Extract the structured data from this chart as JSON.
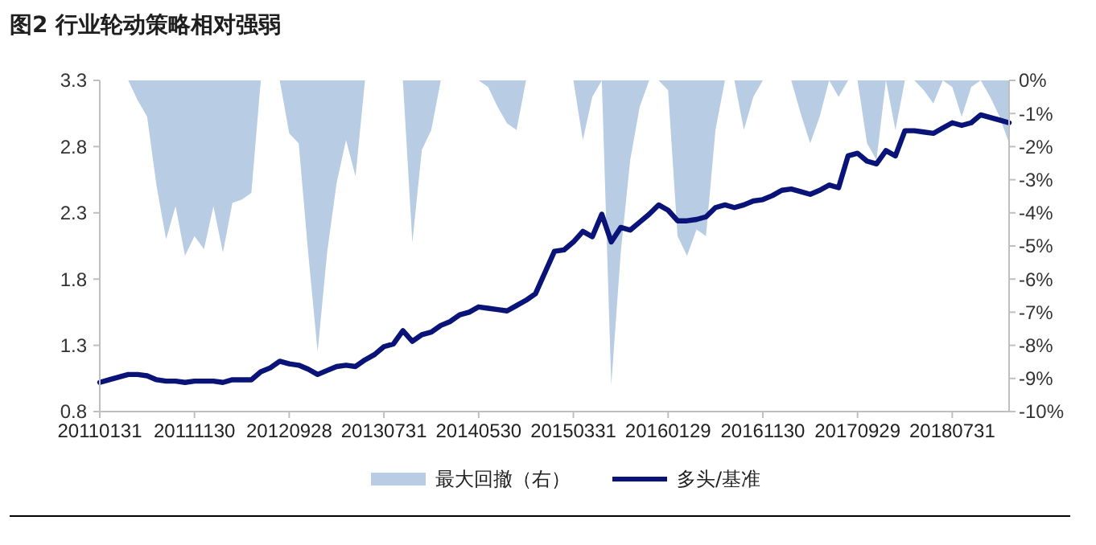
{
  "chart_data": {
    "type": "line",
    "title": "图2 行业轮动策略相对强弱",
    "categories": [
      "20110131",
      null,
      null,
      null,
      null,
      null,
      null,
      null,
      null,
      null,
      "20111130",
      null,
      null,
      null,
      null,
      null,
      null,
      null,
      null,
      null,
      "20120928",
      null,
      null,
      null,
      null,
      null,
      null,
      null,
      null,
      null,
      "20130731",
      null,
      null,
      null,
      null,
      null,
      null,
      null,
      null,
      null,
      "20140530",
      null,
      null,
      null,
      null,
      null,
      null,
      null,
      null,
      null,
      "20150331",
      null,
      null,
      null,
      null,
      null,
      null,
      null,
      null,
      null,
      "20160129",
      null,
      null,
      null,
      null,
      null,
      null,
      null,
      null,
      null,
      "20161130",
      null,
      null,
      null,
      null,
      null,
      null,
      null,
      null,
      null,
      "20170929",
      null,
      null,
      null,
      null,
      null,
      null,
      null,
      null,
      null,
      "20180731",
      null,
      null,
      null,
      null,
      null,
      null
    ],
    "series": [
      {
        "name": "最大回撤（右）",
        "type": "area",
        "axis": "y2",
        "color": "#b8cce4",
        "values": [
          0,
          0,
          0,
          0,
          -0.6,
          -1.1,
          -3.2,
          -4.8,
          -3.8,
          -5.3,
          -4.7,
          -5.1,
          -3.8,
          -5.2,
          -3.7,
          -3.6,
          -3.4,
          0,
          0,
          0,
          -1.6,
          -1.9,
          -5.2,
          -8.2,
          -5.2,
          -3.1,
          -1.8,
          -2.9,
          0,
          0,
          0,
          0,
          0,
          -4.9,
          -2.1,
          -1.5,
          0,
          0,
          0,
          0,
          0,
          -0.2,
          -0.8,
          -1.3,
          -1.5,
          0,
          0,
          0,
          0,
          0,
          0,
          -1.8,
          -0.5,
          0,
          -9.2,
          -5.2,
          -2.4,
          -0.8,
          0,
          0,
          -0.3,
          -4.7,
          -5.3,
          -4.5,
          -4.7,
          -1.5,
          0,
          0,
          -1.5,
          -0.5,
          0,
          0,
          0,
          0,
          -1.0,
          -1.9,
          -1.1,
          0,
          -0.5,
          0,
          0,
          -1.9,
          -2.4,
          0,
          -1.5,
          0,
          0,
          -0.3,
          -0.7,
          0,
          -0.2,
          -1.1,
          -0.2,
          0,
          -0.5,
          -1.1,
          -1.9
        ]
      },
      {
        "name": "多头/基准",
        "color": "#0a1478",
        "values": [
          1.02,
          1.04,
          1.06,
          1.08,
          1.08,
          1.07,
          1.04,
          1.03,
          1.03,
          1.02,
          1.03,
          1.03,
          1.03,
          1.02,
          1.04,
          1.04,
          1.04,
          1.1,
          1.13,
          1.18,
          1.16,
          1.15,
          1.12,
          1.08,
          1.11,
          1.14,
          1.15,
          1.14,
          1.19,
          1.23,
          1.29,
          1.31,
          1.41,
          1.33,
          1.38,
          1.4,
          1.45,
          1.48,
          1.53,
          1.55,
          1.59,
          1.58,
          1.57,
          1.56,
          1.6,
          1.64,
          1.69,
          1.85,
          2.01,
          2.02,
          2.08,
          2.16,
          2.12,
          2.29,
          2.08,
          2.19,
          2.17,
          2.23,
          2.29,
          2.36,
          2.32,
          2.24,
          2.24,
          2.25,
          2.27,
          2.34,
          2.36,
          2.34,
          2.36,
          2.39,
          2.4,
          2.43,
          2.47,
          2.48,
          2.46,
          2.44,
          2.47,
          2.51,
          2.49,
          2.73,
          2.75,
          2.69,
          2.67,
          2.77,
          2.73,
          2.92,
          2.92,
          2.91,
          2.9,
          2.94,
          2.98,
          2.96,
          2.98,
          3.04,
          3.02,
          3.0,
          2.98
        ]
      }
    ],
    "ylim": [
      0.8,
      3.3
    ],
    "yticks": [
      0.8,
      1.3,
      1.8,
      2.3,
      2.8,
      3.3
    ],
    "y2lim": [
      -10,
      0
    ],
    "y2ticks": [
      {
        "value": -10,
        "label": "-10%"
      },
      {
        "value": -9,
        "label": "-9%"
      },
      {
        "value": -8,
        "label": "-8%"
      },
      {
        "value": -7,
        "label": "-7%"
      },
      {
        "value": -6,
        "label": "-6%"
      },
      {
        "value": -5,
        "label": "-5%"
      },
      {
        "value": -4,
        "label": "-4%"
      },
      {
        "value": -3,
        "label": "-3%"
      },
      {
        "value": -2,
        "label": "-2%"
      },
      {
        "value": -1,
        "label": "-1%"
      },
      {
        "value": 0,
        "label": "0%"
      }
    ],
    "legend": "bottom",
    "marker": "none",
    "line_style": "solid"
  }
}
